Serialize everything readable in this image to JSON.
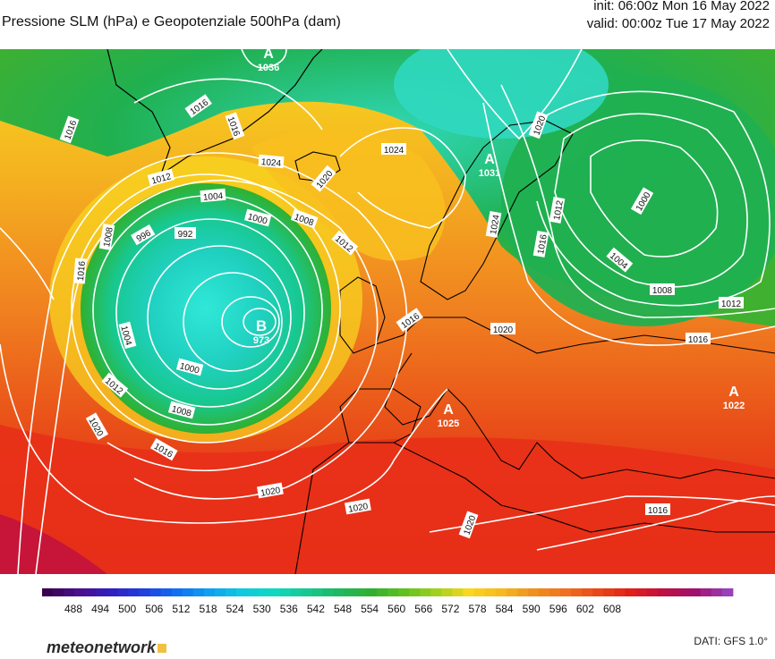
{
  "header": {
    "title": "Pressione SLM (hPa) e Geopotenziale 500hPa (dam)",
    "init": "init: 06:00z Mon 16 May 2022",
    "valid": "valid: 00:00z Tue 17 May 2022"
  },
  "map": {
    "pressure_centers": [
      {
        "type": "A",
        "value": "1036"
      },
      {
        "type": "B",
        "value": "973"
      },
      {
        "type": "A",
        "value": "1031"
      },
      {
        "type": "A",
        "value": "1025"
      },
      {
        "type": "A",
        "value": "1022"
      }
    ],
    "isobar_labels": [
      "1016",
      "1016",
      "1016",
      "1024",
      "1012",
      "1016",
      "1020",
      "1004",
      "1008",
      "1012",
      "996",
      "992",
      "1000",
      "1008",
      "1016",
      "1004",
      "1000",
      "1008",
      "1012",
      "1016",
      "1020",
      "1016",
      "1020",
      "1020",
      "1020",
      "1016",
      "1020",
      "1024",
      "1016",
      "1012",
      "1000",
      "1004",
      "1008",
      "1012",
      "1016",
      "1016"
    ],
    "colors": {
      "low_core": "#20d8c8",
      "green": "#20b040",
      "yellow": "#f8d820",
      "orange": "#f09020",
      "red": "#e83018",
      "deep_red": "#c01040",
      "isobar": "#ffffff",
      "coast": "#000000"
    }
  },
  "colorbar": {
    "unit": "dam",
    "ticks": [
      "488",
      "494",
      "500",
      "506",
      "512",
      "518",
      "524",
      "530",
      "536",
      "542",
      "548",
      "554",
      "560",
      "566",
      "572",
      "578",
      "584",
      "590",
      "596",
      "602",
      "608"
    ],
    "colors": [
      "#3a0050",
      "#4a1090",
      "#3020c0",
      "#2040e0",
      "#1070f0",
      "#10a0f0",
      "#10c8e0",
      "#10d8c0",
      "#18c890",
      "#20b860",
      "#30b030",
      "#60c020",
      "#a0d020",
      "#f8d820",
      "#f8b820",
      "#f09020",
      "#f07020",
      "#e84818",
      "#e02018",
      "#c01040",
      "#a01070",
      "#9a40b8"
    ]
  },
  "footer": {
    "brand": "meteonetwork",
    "source": "DATI: GFS 1.0°"
  }
}
